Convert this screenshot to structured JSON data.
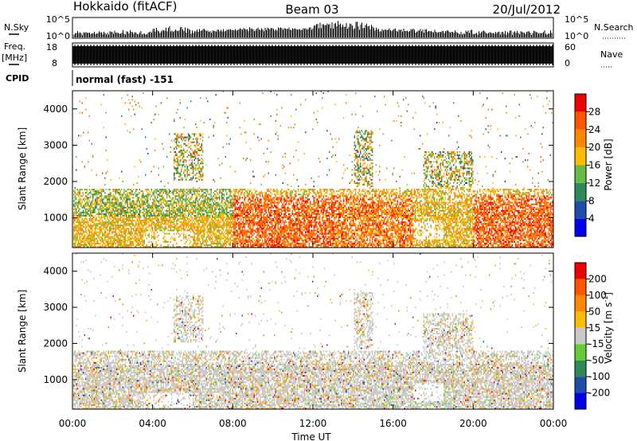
{
  "header": {
    "radar": "Hokkaido (fitACF)",
    "beam": "Beam 03",
    "date": "20/Jul/2012"
  },
  "panels": {
    "nsky": {
      "label": "N.Sky",
      "ticks_left": [
        "10^5",
        "10^0"
      ],
      "ticks_right": [
        "10^5",
        "10^0"
      ],
      "right_label": "N.Search"
    },
    "freq": {
      "label_line1": "Freq.",
      "label_line2": "[MHz]",
      "ticks_left": [
        "18",
        "8"
      ],
      "ticks_right": [
        "60",
        "0"
      ],
      "right_label": "Nave"
    },
    "cpid": {
      "label": "CPID",
      "value": "normal (fast) -151"
    }
  },
  "colors": {
    "power_scale": [
      "#0000ee",
      "#1e4fa8",
      "#2e8b57",
      "#66bb44",
      "#ffbb00",
      "#ff8800",
      "#ff5500",
      "#ee0000"
    ],
    "velocity_scale": [
      "#ee0000",
      "#ff5500",
      "#ff8800",
      "#ffbb00",
      "#c8c8c8",
      "#66cc33",
      "#2e8b57",
      "#1e4fa8",
      "#0000ee"
    ],
    "gray": "#c8c8c8"
  },
  "chart_data": [
    {
      "type": "heatmap",
      "name": "power",
      "ylabel": "Slant Range [km]",
      "yticks": [
        "4000",
        "3000",
        "2000",
        "1000"
      ],
      "ylim": [
        180,
        4500
      ],
      "colorbar": {
        "label": "Power [dB]",
        "ticks": [
          "28",
          "24",
          "20",
          "16",
          "12",
          "8",
          "4"
        ]
      },
      "features": [
        {
          "t0": 0,
          "t1": 24,
          "r0": 180,
          "r1": 1800,
          "type": "dense scatter"
        },
        {
          "t0": 5,
          "t1": 6.5,
          "r0": 2000,
          "r1": 3300,
          "type": "patch"
        },
        {
          "t0": 14,
          "t1": 15,
          "r0": 1800,
          "r1": 3400,
          "type": "patch"
        },
        {
          "t0": 17.5,
          "t1": 20,
          "r0": 1500,
          "r1": 2800,
          "type": "patch"
        }
      ]
    },
    {
      "type": "heatmap",
      "name": "velocity",
      "ylabel": "Slant Range [km]",
      "yticks": [
        "4000",
        "3000",
        "2000",
        "1000"
      ],
      "ylim": [
        180,
        4500
      ],
      "colorbar": {
        "label": "Velocity [m s",
        "label_sup": "-1",
        "label_end": "]",
        "ticks": [
          "200",
          "100",
          "50",
          "15",
          "-15",
          "-50",
          "-100",
          "-200"
        ]
      }
    }
  ],
  "xaxis": {
    "label": "Time UT",
    "ticks": [
      "00:00",
      "04:00",
      "08:00",
      "12:00",
      "16:00",
      "20:00",
      "00:00"
    ],
    "xlim": [
      0,
      24
    ]
  }
}
